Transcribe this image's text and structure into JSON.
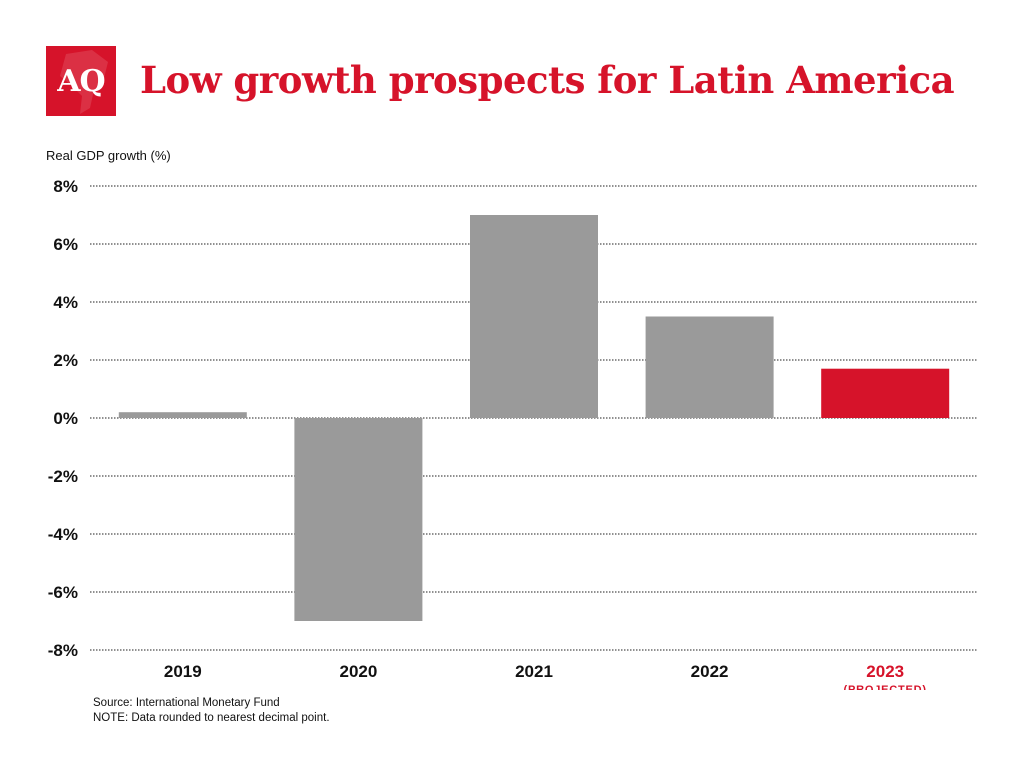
{
  "logo": {
    "text": "AQ"
  },
  "colors": {
    "accent": "#d6132a",
    "bar": "#9a9a9a",
    "highlight_bar": "#d6132a"
  },
  "footer": {
    "source": "Source: International Monetary Fund",
    "note": "NOTE: Data rounded to nearest decimal point."
  },
  "chart_data": {
    "type": "bar",
    "title": "Low growth prospects for Latin America",
    "ylabel": "Real GDP growth (%)",
    "xlabel": "",
    "categories": [
      "2019",
      "2020",
      "2021",
      "2022",
      "2023"
    ],
    "category_notes": [
      "",
      "",
      "",
      "",
      "(PROJECTED)"
    ],
    "highlight": [
      false,
      false,
      false,
      false,
      true
    ],
    "values": [
      0.2,
      -7.0,
      7.0,
      3.5,
      1.7
    ],
    "ylim": [
      -8,
      8
    ],
    "yticks": [
      8,
      6,
      4,
      2,
      0,
      -2,
      -4,
      -6,
      -8
    ],
    "ytick_labels": [
      "8%",
      "6%",
      "4%",
      "2%",
      "0%",
      "-2%",
      "-4%",
      "-6%",
      "-8%"
    ],
    "grid": true,
    "legend": "none"
  }
}
